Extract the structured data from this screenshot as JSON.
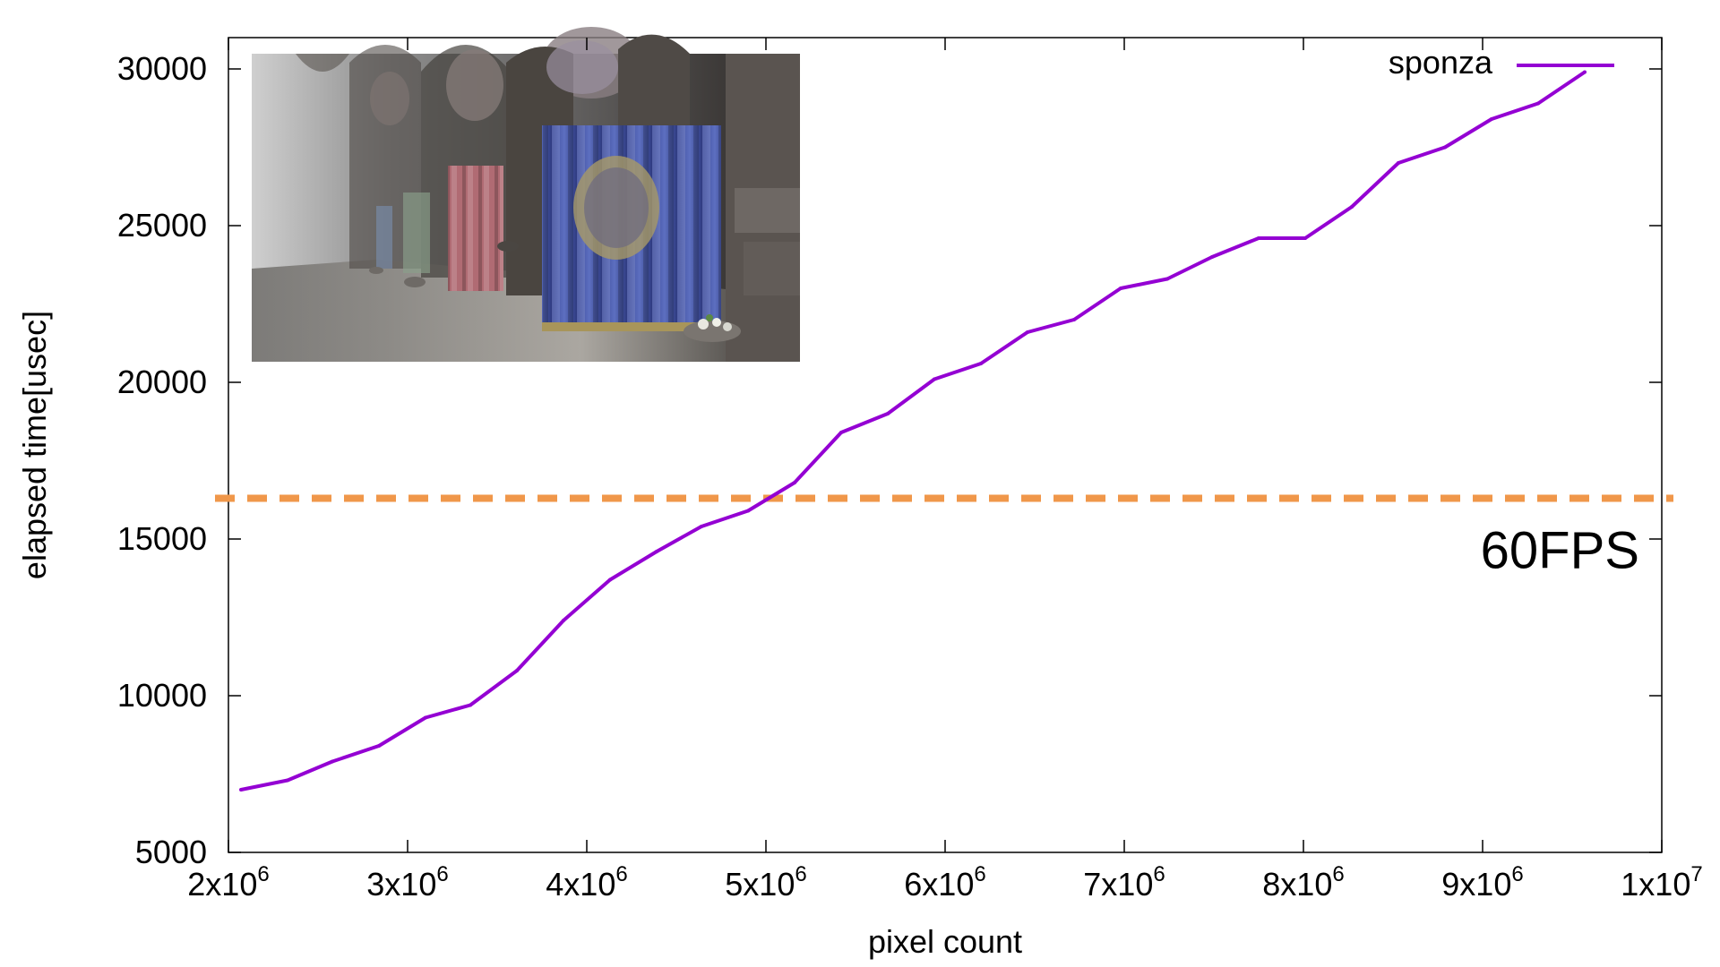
{
  "chart_data": {
    "type": "line",
    "title": "",
    "xlabel": "pixel count",
    "ylabel": "elapsed time[usec]",
    "xlim": [
      2000000,
      10000000
    ],
    "ylim": [
      5000,
      31000
    ],
    "xticks": [
      {
        "value": 2000000,
        "base": "2x10",
        "exp": "6"
      },
      {
        "value": 3000000,
        "base": "3x10",
        "exp": "6"
      },
      {
        "value": 4000000,
        "base": "4x10",
        "exp": "6"
      },
      {
        "value": 5000000,
        "base": "5x10",
        "exp": "6"
      },
      {
        "value": 6000000,
        "base": "6x10",
        "exp": "6"
      },
      {
        "value": 7000000,
        "base": "7x10",
        "exp": "6"
      },
      {
        "value": 8000000,
        "base": "8x10",
        "exp": "6"
      },
      {
        "value": 9000000,
        "base": "9x10",
        "exp": "6"
      },
      {
        "value": 10000000,
        "base": "1x10",
        "exp": "7"
      }
    ],
    "yticks": [
      5000,
      10000,
      15000,
      20000,
      25000,
      30000
    ],
    "ytick_labels": [
      "5000",
      "10000",
      "15000",
      "20000",
      "25000",
      "30000"
    ],
    "series": [
      {
        "name": "sponza",
        "color": "#9400d3",
        "x": [
          2070000,
          2330000,
          2580000,
          2840000,
          3100000,
          3350000,
          3610000,
          3870000,
          4130000,
          4390000,
          4640000,
          4900000,
          5160000,
          5420000,
          5680000,
          5940000,
          6200000,
          6460000,
          6720000,
          6980000,
          7240000,
          7490000,
          7750000,
          8010000,
          8270000,
          8530000,
          8790000,
          9050000,
          9310000,
          9570000
        ],
        "values": [
          7000,
          7300,
          7900,
          8400,
          9300,
          9700,
          10800,
          12400,
          13700,
          14600,
          15400,
          15900,
          16800,
          18400,
          19000,
          20100,
          20600,
          21600,
          22000,
          23000,
          23300,
          24000,
          24600,
          24600,
          25600,
          27000,
          27500,
          28400,
          28900,
          29900
        ]
      }
    ],
    "reference_lines": [
      {
        "label": "60FPS",
        "value": 16300,
        "color": "#f0974a",
        "style": "dashed"
      }
    ],
    "legend": {
      "position": "top-right",
      "entries": [
        "sponza"
      ]
    },
    "grid": false,
    "inset_image": {
      "description_key": "sponza-scene-render",
      "position": "top-left"
    }
  }
}
